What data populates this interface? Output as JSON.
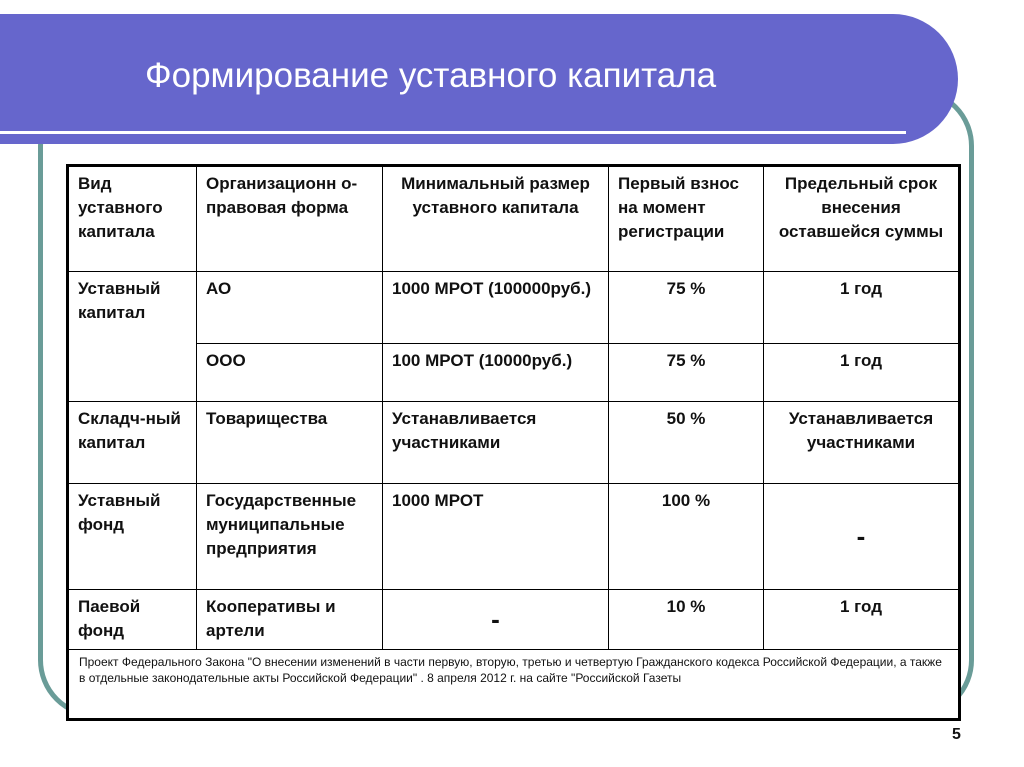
{
  "slide": {
    "title": "Формирование уставного капитала",
    "page_number": "5",
    "colors": {
      "banner": "#6666cc",
      "frame": "#6a9c98"
    }
  },
  "table": {
    "headers": [
      "Вид уставного капитала",
      "Организационн о-правовая форма",
      "Минимальный размер уставного капитала",
      "Первый взнос на момент регистрации",
      "Предельный срок внесения оставшейся суммы"
    ],
    "rows": [
      {
        "type": "Уставный капитал",
        "form": "АО",
        "min_size": "1000 МРОТ (100000руб.)",
        "first_payment": "75 %",
        "term": "1 год"
      },
      {
        "form": "ООО",
        "min_size": "100 МРОТ (10000руб.)",
        "first_payment": "75 %",
        "term": "1 год"
      },
      {
        "type": "Складч-ный капитал",
        "form": "Товарищества",
        "min_size": "Устанавливается участниками",
        "first_payment": "50 %",
        "term": "Устанавливается участниками"
      },
      {
        "type": "Уставный фонд",
        "form": "Государственные муниципальные предприятия",
        "min_size": "1000 МРОТ",
        "first_payment": "100 %",
        "term": "-"
      },
      {
        "type": "Паевой фонд",
        "form": "Кооперативы и артели",
        "min_size": "-",
        "first_payment": "10 %",
        "term": "1 год"
      }
    ],
    "footnote": "Проект Федерального Закона \"О внесении изменений в части первую, вторую, третью и четвертую Гражданского кодекса Российской Федерации, а также в отдельные законодательные акты Российской Федерации\" . 8 апреля 2012 г. на сайте \"Российской Газеты"
  }
}
